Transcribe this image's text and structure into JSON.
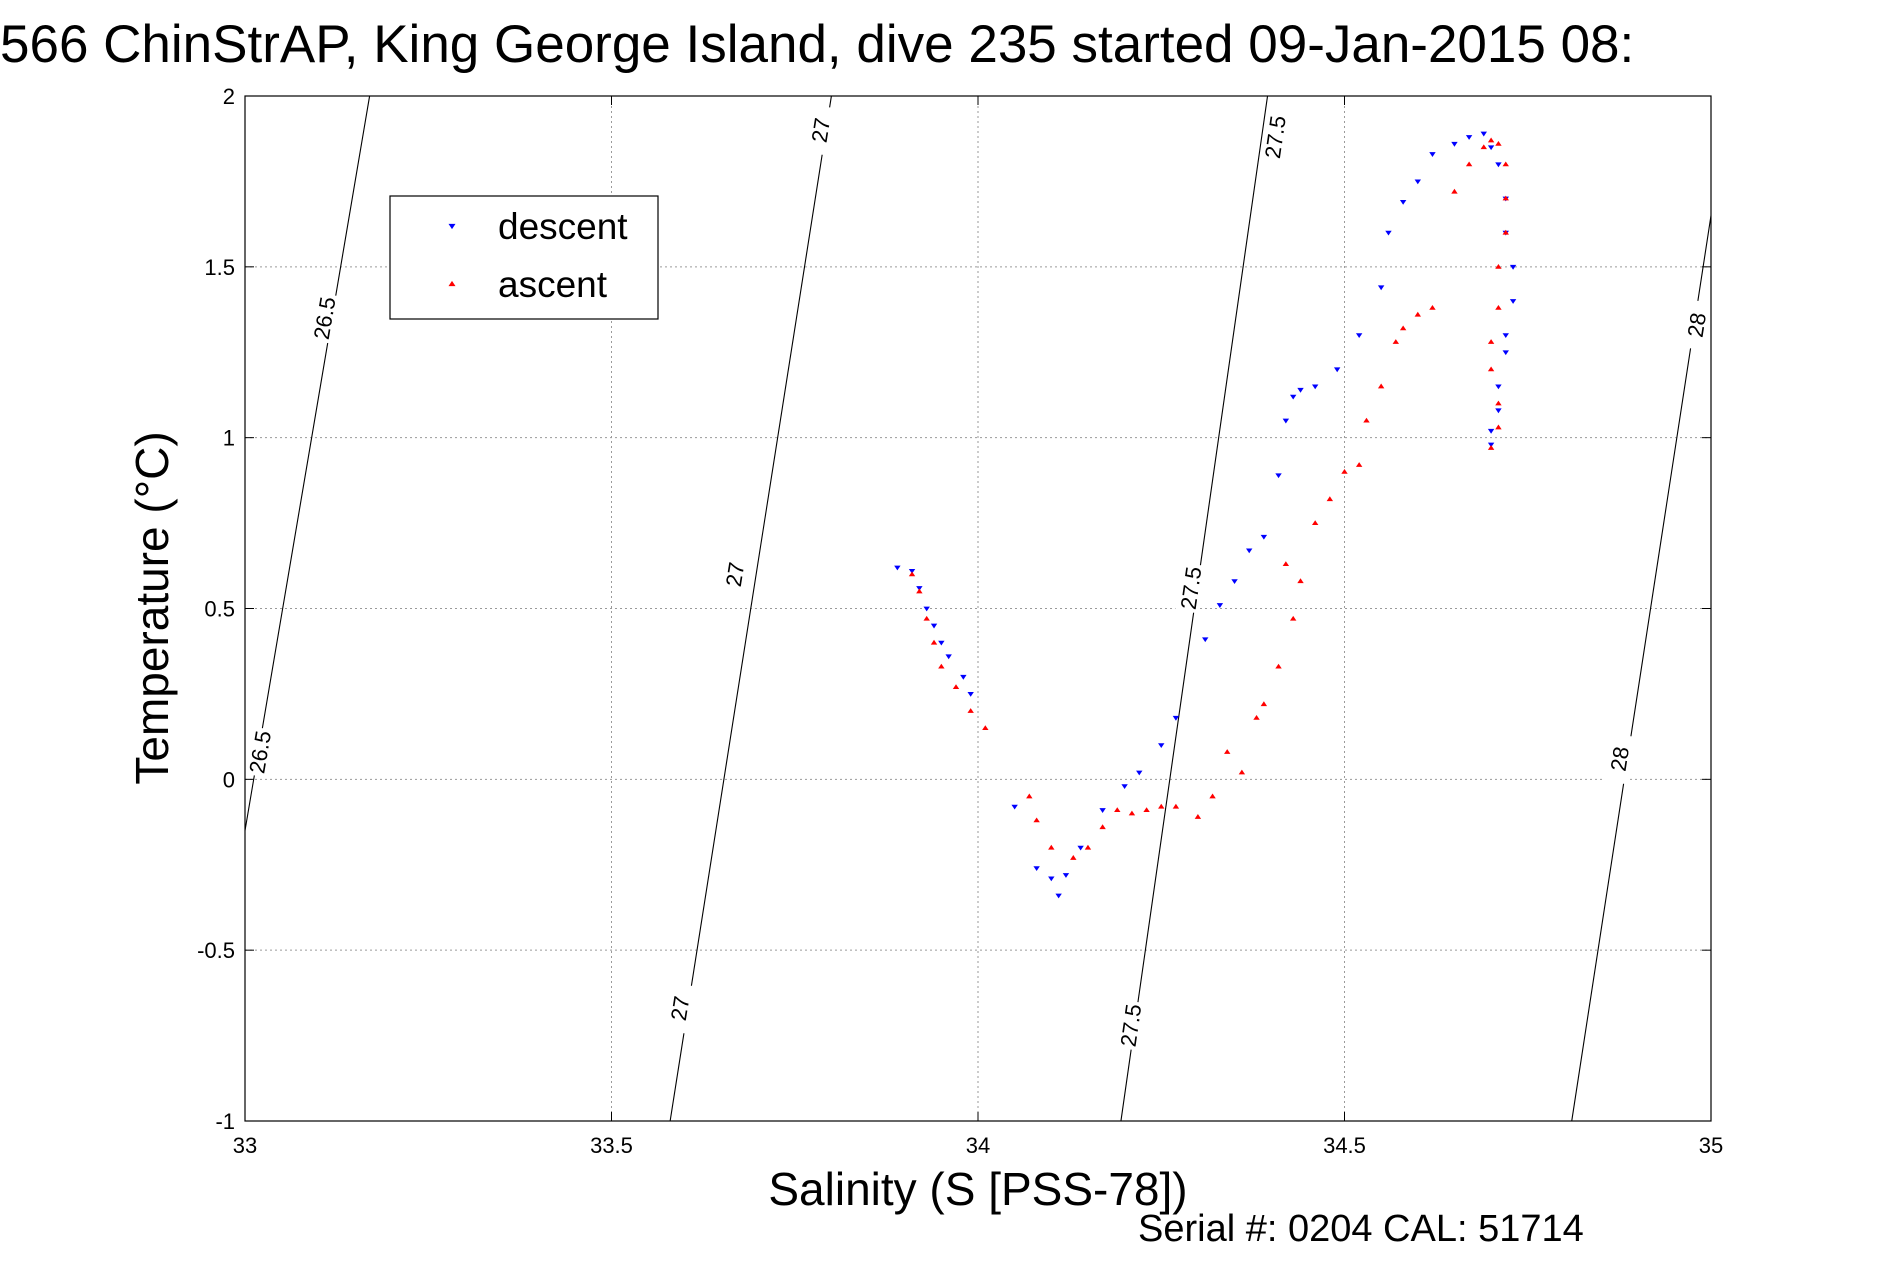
{
  "chart_data": {
    "type": "scatter",
    "title": "566 ChinStrAP, King George Island, dive 235 started 09-Jan-2015 08:",
    "xlabel": "Salinity (S [PSS-78])",
    "ylabel": "Temperature (°C)",
    "footer": "Serial #: 0204  CAL: 51714",
    "xlim": [
      33,
      35
    ],
    "ylim": [
      -1,
      2
    ],
    "xticks": [
      33,
      33.5,
      34,
      34.5,
      35
    ],
    "yticks": [
      -1,
      -0.5,
      0,
      0.5,
      1,
      1.5,
      2
    ],
    "xtick_labels": [
      "33",
      "33.5",
      "34",
      "34.5",
      "35"
    ],
    "ytick_labels": [
      "-1",
      "-0.5",
      "0",
      "0.5",
      "1",
      "1.5",
      "2"
    ],
    "grid": true,
    "legend_position": "top-left",
    "isopycnals": [
      {
        "label": "26.5",
        "points": [
          [
            33.0,
            -0.15
          ],
          [
            33.17,
            2.0
          ]
        ],
        "label_positions": [
          [
            33.108,
            1.35
          ],
          [
            33.02,
            0.08
          ]
        ]
      },
      {
        "label": "27",
        "points": [
          [
            33.58,
            -1.0
          ],
          [
            33.8,
            2.0
          ]
        ],
        "label_positions": [
          [
            33.785,
            1.9
          ],
          [
            33.668,
            0.6
          ],
          [
            33.593,
            -0.67
          ]
        ]
      },
      {
        "label": "27.5",
        "points": [
          [
            34.195,
            -1.0
          ],
          [
            34.395,
            2.0
          ]
        ],
        "label_positions": [
          [
            34.405,
            1.88
          ],
          [
            34.29,
            0.56
          ],
          [
            34.208,
            -0.72
          ]
        ]
      },
      {
        "label": "28",
        "points": [
          [
            34.81,
            -1.0
          ],
          [
            35.0,
            1.65
          ]
        ],
        "label_positions": [
          [
            34.98,
            1.33
          ],
          [
            34.875,
            0.06
          ]
        ]
      }
    ],
    "series": [
      {
        "name": "descent",
        "color": "#0000ff",
        "marker": "triangle-down",
        "x": [
          33.89,
          33.91,
          33.92,
          33.93,
          33.94,
          33.95,
          33.96,
          33.98,
          33.99,
          34.05,
          34.08,
          34.1,
          34.11,
          34.12,
          34.14,
          34.17,
          34.2,
          34.22,
          34.25,
          34.27,
          34.31,
          34.33,
          34.35,
          34.37,
          34.39,
          34.41,
          34.42,
          34.43,
          34.44,
          34.46,
          34.49,
          34.52,
          34.55,
          34.56,
          34.58,
          34.6,
          34.62,
          34.65,
          34.67,
          34.69,
          34.7,
          34.71,
          34.72,
          34.72,
          34.73,
          34.73,
          34.72,
          34.72,
          34.71,
          34.71,
          34.7,
          34.7
        ],
        "y": [
          0.62,
          0.61,
          0.56,
          0.5,
          0.45,
          0.4,
          0.36,
          0.3,
          0.25,
          -0.08,
          -0.26,
          -0.29,
          -0.34,
          -0.28,
          -0.2,
          -0.09,
          -0.02,
          0.02,
          0.1,
          0.18,
          0.41,
          0.51,
          0.58,
          0.67,
          0.71,
          0.89,
          1.05,
          1.12,
          1.14,
          1.15,
          1.2,
          1.3,
          1.44,
          1.6,
          1.69,
          1.75,
          1.83,
          1.86,
          1.88,
          1.89,
          1.85,
          1.8,
          1.7,
          1.6,
          1.5,
          1.4,
          1.3,
          1.25,
          1.15,
          1.08,
          1.02,
          0.98
        ]
      },
      {
        "name": "ascent",
        "color": "#ff0000",
        "marker": "triangle-up",
        "x": [
          33.91,
          33.92,
          33.93,
          33.94,
          33.95,
          33.97,
          33.99,
          34.01,
          34.07,
          34.08,
          34.1,
          34.13,
          34.15,
          34.17,
          34.19,
          34.21,
          34.23,
          34.25,
          34.27,
          34.3,
          34.32,
          34.34,
          34.36,
          34.38,
          34.39,
          34.41,
          34.43,
          34.42,
          34.44,
          34.46,
          34.48,
          34.5,
          34.52,
          34.53,
          34.55,
          34.57,
          34.58,
          34.6,
          34.62,
          34.65,
          34.67,
          34.69,
          34.7,
          34.71,
          34.72,
          34.72,
          34.72,
          34.71,
          34.71,
          34.7,
          34.7,
          34.71,
          34.71,
          34.7
        ],
        "y": [
          0.6,
          0.55,
          0.47,
          0.4,
          0.33,
          0.27,
          0.2,
          0.15,
          -0.05,
          -0.12,
          -0.2,
          -0.23,
          -0.2,
          -0.14,
          -0.09,
          -0.1,
          -0.09,
          -0.08,
          -0.08,
          -0.11,
          -0.05,
          0.08,
          0.02,
          0.18,
          0.22,
          0.33,
          0.47,
          0.63,
          0.58,
          0.75,
          0.82,
          0.9,
          0.92,
          1.05,
          1.15,
          1.28,
          1.32,
          1.36,
          1.38,
          1.72,
          1.8,
          1.85,
          1.87,
          1.86,
          1.8,
          1.7,
          1.6,
          1.5,
          1.38,
          1.28,
          1.2,
          1.1,
          1.03,
          0.97
        ]
      }
    ]
  }
}
